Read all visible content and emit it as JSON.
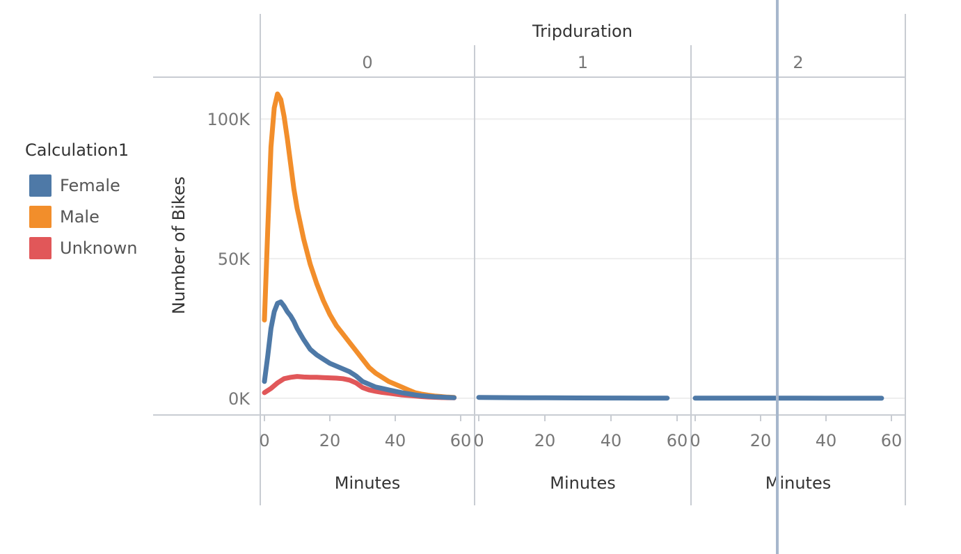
{
  "legend": {
    "title": "Calculation1",
    "items": [
      {
        "label": "Female",
        "color": "#4e79a7"
      },
      {
        "label": "Male",
        "color": "#f28e2b"
      },
      {
        "label": "Unknown",
        "color": "#e15759"
      }
    ]
  },
  "chart_data": {
    "type": "line",
    "column_header": "Tripduration",
    "panels": [
      "0",
      "1",
      "2"
    ],
    "xlabel": "Minutes",
    "ylabel": "Number of Bikes",
    "xlim": [
      0,
      60
    ],
    "ylim": [
      -6000,
      115000
    ],
    "x_ticks": [
      0,
      20,
      40,
      60
    ],
    "x_tick_labels": [
      "0",
      "20",
      "40",
      "60"
    ],
    "y_ticks": [
      0,
      50000,
      100000
    ],
    "y_tick_labels": [
      "0K",
      "50K",
      "100K"
    ],
    "grid": true,
    "legend_position": "left",
    "series": [
      {
        "name": "Male",
        "color": "#f28e2b",
        "panels": [
          {
            "panel": "0",
            "x": [
              0,
              1,
              2,
              3,
              4,
              5,
              6,
              7,
              8,
              9,
              10,
              12,
              14,
              16,
              18,
              20,
              22,
              24,
              26,
              28,
              30,
              32,
              34,
              36,
              38,
              40,
              42,
              44,
              46,
              48,
              50,
              52,
              54,
              56,
              58
            ],
            "y": [
              28000,
              60000,
              90000,
              104000,
              109000,
              107000,
              101000,
              93000,
              84000,
              75000,
              68000,
              57000,
              48000,
              41000,
              35000,
              30000,
              26000,
              23000,
              20000,
              17000,
              14000,
              11000,
              9000,
              7500,
              6000,
              5000,
              4000,
              3000,
              2000,
              1500,
              1100,
              800,
              600,
              400,
              300
            ]
          }
        ]
      },
      {
        "name": "Female",
        "color": "#4e79a7",
        "panels": [
          {
            "panel": "0",
            "x": [
              0,
              1,
              2,
              3,
              4,
              5,
              6,
              7,
              8,
              9,
              10,
              12,
              14,
              16,
              18,
              20,
              22,
              24,
              26,
              28,
              30,
              32,
              34,
              36,
              38,
              40,
              42,
              44,
              46,
              48,
              50,
              52,
              54,
              56,
              58
            ],
            "y": [
              6000,
              15000,
              25000,
              31000,
              34000,
              34500,
              33000,
              31000,
              29500,
              27500,
              25000,
              21000,
              17500,
              15500,
              14000,
              12500,
              11500,
              10500,
              9500,
              8000,
              6000,
              5000,
              4000,
              3500,
              3000,
              2500,
              2000,
              1600,
              1200,
              900,
              700,
              500,
              400,
              300,
              200
            ]
          },
          {
            "panel": "1",
            "x": [
              0,
              10,
              20,
              30,
              40,
              50,
              57
            ],
            "y": [
              300,
              200,
              150,
              100,
              80,
              60,
              50
            ]
          },
          {
            "panel": "2",
            "x": [
              0,
              10,
              20,
              30,
              40,
              50,
              57
            ],
            "y": [
              30,
              20,
              20,
              15,
              10,
              10,
              10
            ]
          }
        ]
      },
      {
        "name": "Unknown",
        "color": "#e15759",
        "panels": [
          {
            "panel": "0",
            "x": [
              0,
              2,
              4,
              6,
              8,
              10,
              12,
              14,
              16,
              18,
              20,
              22,
              24,
              26,
              28,
              30,
              32,
              34,
              36,
              38,
              40,
              42,
              44,
              46,
              48,
              50,
              52,
              54,
              56,
              58
            ],
            "y": [
              2000,
              3500,
              5500,
              7000,
              7500,
              7800,
              7600,
              7500,
              7500,
              7400,
              7300,
              7200,
              7000,
              6500,
              5500,
              3800,
              3000,
              2500,
              2100,
              1800,
              1500,
              1200,
              1000,
              800,
              600,
              450,
              350,
              250,
              200,
              150
            ]
          }
        ]
      }
    ]
  }
}
